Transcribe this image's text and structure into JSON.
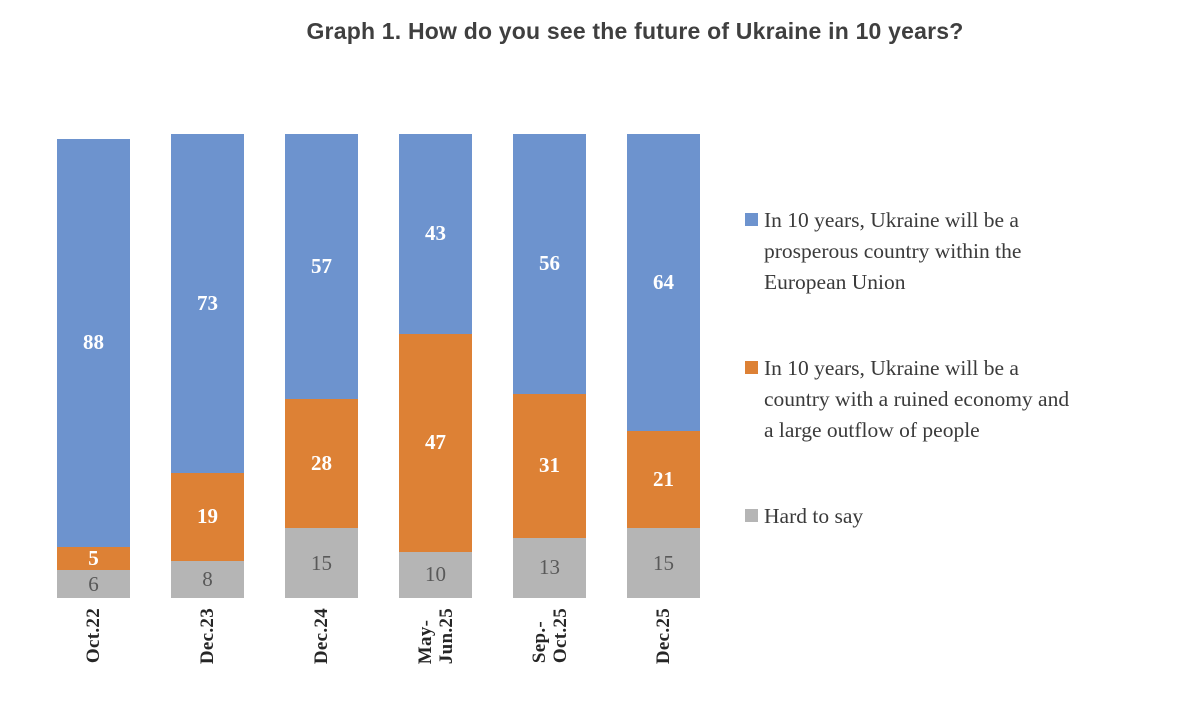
{
  "chart_data": {
    "type": "bar",
    "stacked": true,
    "title": "Graph 1. How do you see the future of Ukraine in 10 years?",
    "xlabel": "",
    "ylabel": "",
    "ylim": [
      0,
      100
    ],
    "grid": false,
    "legend_position": "right",
    "categories": [
      "Oct.22",
      "Dec.23",
      "Dec.24",
      "May-\nJun.25",
      "Sep.-\nOct.25",
      "Dec.25"
    ],
    "series": [
      {
        "name": "In 10 years, Ukraine will be a\nprosperous country within the\nEuropean Union",
        "color": "#6d93ce",
        "label_color": "#ffffff",
        "label_bold": true,
        "values": [
          88,
          73,
          57,
          43,
          56,
          64
        ]
      },
      {
        "name": "In 10 years, Ukraine will be a\ncountry with a ruined economy and\na large outflow of people",
        "color": "#dd8135",
        "label_color": "#ffffff",
        "label_bold": true,
        "values": [
          5,
          19,
          28,
          47,
          31,
          21
        ]
      },
      {
        "name": "Hard to say",
        "color": "#b5b5b5",
        "label_color": "#595959",
        "label_bold": false,
        "values": [
          6,
          8,
          15,
          10,
          13,
          15
        ]
      }
    ]
  }
}
